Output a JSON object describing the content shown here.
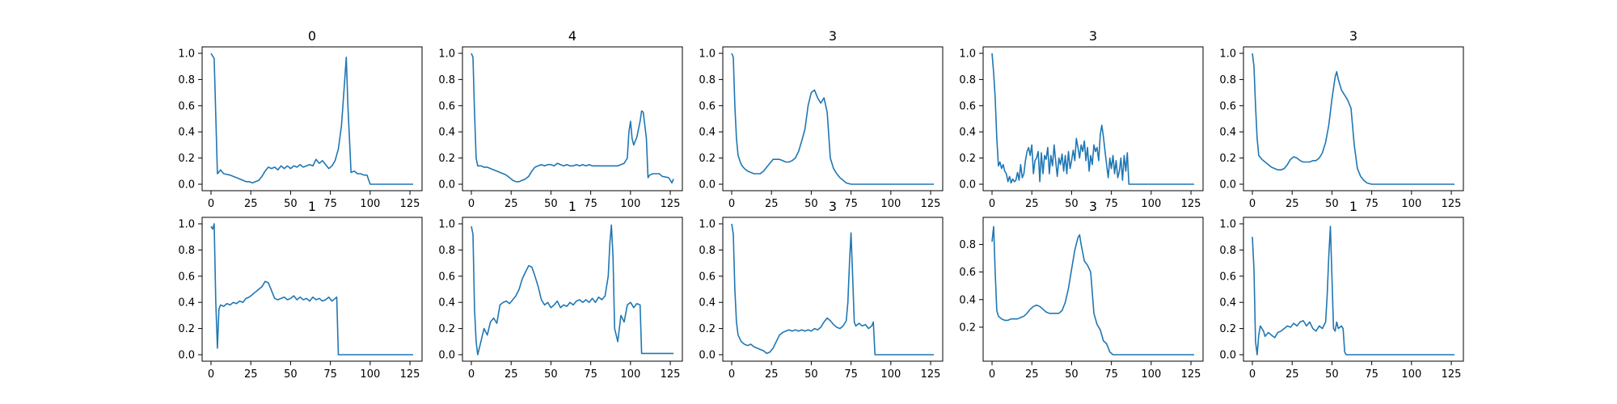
{
  "chart_data": [
    {
      "type": "line",
      "title": "0",
      "xlim": [
        0,
        127
      ],
      "ylim": [
        0,
        1.0
      ],
      "xticks": [
        0,
        25,
        50,
        75,
        100,
        125
      ],
      "yticks": [
        0.0,
        0.2,
        0.4,
        0.6,
        0.8,
        1.0
      ],
      "x": [
        0,
        2,
        4,
        6,
        8,
        12,
        16,
        20,
        22,
        24,
        26,
        28,
        30,
        32,
        34,
        36,
        38,
        40,
        42,
        44,
        46,
        48,
        50,
        52,
        54,
        56,
        58,
        60,
        62,
        64,
        66,
        68,
        70,
        72,
        74,
        76,
        78,
        80,
        82,
        84,
        85,
        86,
        88,
        90,
        92,
        94,
        96,
        98,
        100,
        104,
        110,
        120,
        127
      ],
      "y": [
        1.0,
        0.96,
        0.08,
        0.11,
        0.08,
        0.07,
        0.05,
        0.03,
        0.02,
        0.02,
        0.01,
        0.02,
        0.03,
        0.06,
        0.1,
        0.13,
        0.12,
        0.13,
        0.11,
        0.14,
        0.12,
        0.14,
        0.12,
        0.14,
        0.13,
        0.15,
        0.13,
        0.14,
        0.15,
        0.14,
        0.19,
        0.16,
        0.18,
        0.15,
        0.12,
        0.14,
        0.18,
        0.27,
        0.45,
        0.8,
        0.97,
        0.6,
        0.09,
        0.1,
        0.08,
        0.08,
        0.07,
        0.07,
        0.0,
        0.0,
        0.0,
        0.0,
        0.0
      ]
    },
    {
      "type": "line",
      "title": "4",
      "xlim": [
        0,
        127
      ],
      "ylim": [
        0,
        1.0
      ],
      "xticks": [
        0,
        25,
        50,
        75,
        100,
        125
      ],
      "yticks": [
        0.0,
        0.2,
        0.4,
        0.6,
        0.8,
        1.0
      ],
      "x": [
        0,
        1,
        2,
        3,
        4,
        6,
        8,
        10,
        12,
        14,
        16,
        18,
        20,
        22,
        24,
        26,
        28,
        30,
        32,
        34,
        36,
        38,
        40,
        42,
        44,
        46,
        48,
        50,
        52,
        54,
        56,
        58,
        60,
        62,
        64,
        66,
        68,
        70,
        72,
        74,
        76,
        78,
        80,
        84,
        88,
        92,
        96,
        98,
        99,
        100,
        101,
        102,
        104,
        106,
        107,
        108,
        110,
        111,
        112,
        114,
        116,
        118,
        120,
        124,
        126,
        127
      ],
      "y": [
        1.0,
        0.97,
        0.55,
        0.2,
        0.14,
        0.14,
        0.13,
        0.13,
        0.12,
        0.11,
        0.1,
        0.09,
        0.08,
        0.07,
        0.05,
        0.03,
        0.02,
        0.02,
        0.03,
        0.04,
        0.06,
        0.1,
        0.13,
        0.14,
        0.15,
        0.14,
        0.15,
        0.15,
        0.14,
        0.16,
        0.15,
        0.14,
        0.15,
        0.14,
        0.14,
        0.15,
        0.14,
        0.15,
        0.14,
        0.15,
        0.14,
        0.14,
        0.14,
        0.14,
        0.14,
        0.14,
        0.16,
        0.2,
        0.4,
        0.48,
        0.35,
        0.3,
        0.36,
        0.48,
        0.56,
        0.55,
        0.35,
        0.05,
        0.07,
        0.08,
        0.08,
        0.08,
        0.06,
        0.05,
        0.01,
        0.04
      ]
    },
    {
      "type": "line",
      "title": "3",
      "xlim": [
        0,
        127
      ],
      "ylim": [
        0,
        1.0
      ],
      "xticks": [
        0,
        25,
        50,
        75,
        100,
        125
      ],
      "yticks": [
        0.0,
        0.2,
        0.4,
        0.6,
        0.8,
        1.0
      ],
      "x": [
        0,
        1,
        2,
        3,
        4,
        6,
        8,
        10,
        12,
        14,
        16,
        18,
        20,
        22,
        24,
        26,
        28,
        30,
        32,
        34,
        36,
        38,
        40,
        42,
        44,
        46,
        48,
        50,
        52,
        54,
        56,
        58,
        60,
        62,
        64,
        66,
        68,
        70,
        72,
        75,
        80,
        90,
        100,
        110,
        120,
        127
      ],
      "y": [
        1.0,
        0.97,
        0.6,
        0.35,
        0.22,
        0.15,
        0.12,
        0.1,
        0.09,
        0.08,
        0.08,
        0.08,
        0.1,
        0.13,
        0.16,
        0.19,
        0.19,
        0.19,
        0.18,
        0.17,
        0.17,
        0.18,
        0.2,
        0.25,
        0.33,
        0.42,
        0.6,
        0.7,
        0.72,
        0.66,
        0.62,
        0.66,
        0.55,
        0.2,
        0.12,
        0.08,
        0.05,
        0.03,
        0.01,
        0.0,
        0.0,
        0.0,
        0.0,
        0.0,
        0.0,
        0.0
      ]
    },
    {
      "type": "line",
      "title": "3",
      "xlim": [
        0,
        127
      ],
      "ylim": [
        0,
        1.0
      ],
      "xticks": [
        0,
        25,
        50,
        75,
        100,
        125
      ],
      "yticks": [
        0.0,
        0.2,
        0.4,
        0.6,
        0.8,
        1.0
      ],
      "x": [
        0,
        1,
        2,
        3,
        4,
        5,
        6,
        7,
        8,
        9,
        10,
        11,
        12,
        13,
        14,
        15,
        16,
        17,
        18,
        19,
        20,
        21,
        22,
        23,
        24,
        25,
        26,
        27,
        28,
        29,
        30,
        31,
        32,
        33,
        34,
        35,
        36,
        37,
        38,
        39,
        40,
        41,
        42,
        43,
        44,
        45,
        46,
        47,
        48,
        49,
        50,
        51,
        52,
        53,
        54,
        55,
        56,
        57,
        58,
        59,
        60,
        61,
        62,
        63,
        64,
        65,
        66,
        67,
        68,
        69,
        70,
        71,
        72,
        73,
        74,
        75,
        76,
        77,
        78,
        79,
        80,
        81,
        82,
        83,
        84,
        85,
        86,
        90,
        100,
        110,
        120,
        127
      ],
      "y": [
        1.0,
        0.85,
        0.66,
        0.35,
        0.14,
        0.17,
        0.12,
        0.15,
        0.1,
        0.08,
        0.02,
        0.06,
        0.01,
        0.04,
        0.02,
        0.03,
        0.09,
        0.03,
        0.15,
        0.05,
        0.08,
        0.18,
        0.25,
        0.28,
        0.22,
        0.3,
        0.08,
        0.18,
        0.2,
        0.25,
        0.02,
        0.24,
        0.08,
        0.22,
        0.19,
        0.28,
        0.08,
        0.22,
        0.14,
        0.3,
        0.18,
        0.06,
        0.2,
        0.15,
        0.23,
        0.1,
        0.22,
        0.08,
        0.25,
        0.12,
        0.18,
        0.26,
        0.18,
        0.35,
        0.28,
        0.2,
        0.3,
        0.25,
        0.33,
        0.18,
        0.28,
        0.1,
        0.22,
        0.15,
        0.3,
        0.25,
        0.28,
        0.18,
        0.38,
        0.45,
        0.36,
        0.25,
        0.15,
        0.05,
        0.2,
        0.12,
        0.22,
        0.08,
        0.18,
        0.05,
        0.1,
        0.2,
        0.03,
        0.22,
        0.1,
        0.24,
        0.0,
        0.0,
        0.0,
        0.0,
        0.0,
        0.0
      ]
    },
    {
      "type": "line",
      "title": "3",
      "xlim": [
        0,
        127
      ],
      "ylim": [
        0,
        1.0
      ],
      "xticks": [
        0,
        25,
        50,
        75,
        100,
        125
      ],
      "yticks": [
        0.0,
        0.2,
        0.4,
        0.6,
        0.8,
        1.0
      ],
      "x": [
        0,
        1,
        2,
        3,
        4,
        6,
        8,
        10,
        12,
        14,
        16,
        18,
        20,
        22,
        24,
        26,
        28,
        30,
        32,
        34,
        36,
        38,
        40,
        42,
        44,
        46,
        48,
        50,
        52,
        53,
        54,
        56,
        58,
        60,
        62,
        64,
        66,
        68,
        70,
        72,
        75,
        80,
        90,
        100,
        110,
        120,
        127
      ],
      "y": [
        1.0,
        0.9,
        0.6,
        0.35,
        0.22,
        0.19,
        0.17,
        0.15,
        0.13,
        0.12,
        0.11,
        0.11,
        0.12,
        0.15,
        0.19,
        0.21,
        0.2,
        0.18,
        0.17,
        0.17,
        0.17,
        0.18,
        0.18,
        0.2,
        0.24,
        0.32,
        0.45,
        0.65,
        0.82,
        0.86,
        0.8,
        0.72,
        0.68,
        0.64,
        0.58,
        0.3,
        0.12,
        0.06,
        0.03,
        0.01,
        0.0,
        0.0,
        0.0,
        0.0,
        0.0,
        0.0,
        0.0
      ]
    },
    {
      "type": "line",
      "title": "1",
      "xlim": [
        0,
        127
      ],
      "ylim": [
        0,
        1.0
      ],
      "xticks": [
        0,
        25,
        50,
        75,
        100,
        125
      ],
      "yticks": [
        0.0,
        0.2,
        0.4,
        0.6,
        0.8,
        1.0
      ],
      "x": [
        0,
        1,
        2,
        3,
        4,
        5,
        6,
        8,
        10,
        12,
        14,
        16,
        18,
        20,
        22,
        24,
        26,
        28,
        30,
        32,
        34,
        36,
        38,
        40,
        42,
        44,
        46,
        48,
        50,
        52,
        54,
        56,
        58,
        60,
        62,
        64,
        66,
        68,
        70,
        72,
        74,
        76,
        78,
        79,
        80,
        82,
        90,
        100,
        110,
        120,
        127
      ],
      "y": [
        0.98,
        0.96,
        1.0,
        0.4,
        0.05,
        0.35,
        0.38,
        0.37,
        0.39,
        0.38,
        0.4,
        0.39,
        0.41,
        0.4,
        0.43,
        0.44,
        0.46,
        0.48,
        0.5,
        0.52,
        0.56,
        0.55,
        0.49,
        0.43,
        0.42,
        0.43,
        0.44,
        0.42,
        0.43,
        0.45,
        0.42,
        0.44,
        0.42,
        0.43,
        0.41,
        0.44,
        0.42,
        0.43,
        0.41,
        0.42,
        0.44,
        0.41,
        0.43,
        0.44,
        0.0,
        0.0,
        0.0,
        0.0,
        0.0,
        0.0,
        0.0
      ]
    },
    {
      "type": "line",
      "title": "1",
      "xlim": [
        0,
        127
      ],
      "ylim": [
        0,
        1.0
      ],
      "xticks": [
        0,
        25,
        50,
        75,
        100,
        125
      ],
      "yticks": [
        0.0,
        0.2,
        0.4,
        0.6,
        0.8,
        1.0
      ],
      "x": [
        0,
        1,
        2,
        3,
        4,
        6,
        8,
        10,
        12,
        14,
        16,
        18,
        20,
        22,
        24,
        26,
        28,
        30,
        32,
        34,
        36,
        38,
        40,
        42,
        44,
        46,
        48,
        50,
        52,
        54,
        56,
        58,
        60,
        62,
        64,
        66,
        68,
        70,
        72,
        74,
        76,
        78,
        80,
        82,
        84,
        86,
        87,
        88,
        89,
        90,
        92,
        94,
        96,
        98,
        100,
        102,
        104,
        106,
        107,
        110,
        120,
        127
      ],
      "y": [
        0.98,
        0.92,
        0.35,
        0.1,
        0.0,
        0.1,
        0.2,
        0.15,
        0.25,
        0.28,
        0.24,
        0.38,
        0.4,
        0.41,
        0.39,
        0.42,
        0.45,
        0.5,
        0.58,
        0.63,
        0.68,
        0.67,
        0.6,
        0.52,
        0.42,
        0.38,
        0.4,
        0.36,
        0.38,
        0.41,
        0.36,
        0.38,
        0.37,
        0.4,
        0.38,
        0.41,
        0.42,
        0.4,
        0.42,
        0.4,
        0.43,
        0.4,
        0.44,
        0.42,
        0.45,
        0.6,
        0.85,
        0.99,
        0.75,
        0.2,
        0.1,
        0.3,
        0.25,
        0.38,
        0.4,
        0.36,
        0.39,
        0.38,
        0.01,
        0.01,
        0.01,
        0.01
      ]
    },
    {
      "type": "line",
      "title": "3",
      "xlim": [
        0,
        127
      ],
      "ylim": [
        0,
        1.0
      ],
      "xticks": [
        0,
        25,
        50,
        75,
        100,
        125
      ],
      "yticks": [
        0.0,
        0.2,
        0.4,
        0.6,
        0.8,
        1.0
      ],
      "x": [
        0,
        1,
        2,
        3,
        4,
        6,
        8,
        10,
        12,
        14,
        16,
        18,
        20,
        22,
        24,
        26,
        28,
        30,
        32,
        34,
        36,
        38,
        40,
        42,
        44,
        46,
        48,
        50,
        52,
        54,
        56,
        58,
        60,
        62,
        64,
        66,
        68,
        70,
        72,
        73,
        74,
        75,
        76,
        77,
        78,
        80,
        82,
        84,
        86,
        88,
        89,
        90,
        95,
        100,
        110,
        120,
        127
      ],
      "y": [
        1.0,
        0.92,
        0.5,
        0.25,
        0.15,
        0.1,
        0.08,
        0.07,
        0.08,
        0.06,
        0.05,
        0.04,
        0.03,
        0.01,
        0.02,
        0.05,
        0.1,
        0.15,
        0.17,
        0.18,
        0.19,
        0.18,
        0.19,
        0.18,
        0.19,
        0.18,
        0.19,
        0.18,
        0.2,
        0.19,
        0.21,
        0.25,
        0.28,
        0.26,
        0.23,
        0.21,
        0.2,
        0.22,
        0.26,
        0.4,
        0.7,
        0.93,
        0.6,
        0.25,
        0.22,
        0.24,
        0.22,
        0.23,
        0.2,
        0.22,
        0.25,
        0.0,
        0.0,
        0.0,
        0.0,
        0.0,
        0.0
      ]
    },
    {
      "type": "line",
      "title": "3",
      "xlim": [
        0,
        127
      ],
      "ylim": [
        0,
        0.95
      ],
      "xticks": [
        0,
        25,
        50,
        75,
        100,
        125
      ],
      "yticks": [
        0.2,
        0.4,
        0.6,
        0.8
      ],
      "x": [
        0,
        1,
        2,
        3,
        4,
        6,
        8,
        10,
        12,
        14,
        16,
        18,
        20,
        22,
        24,
        26,
        28,
        30,
        32,
        34,
        36,
        38,
        40,
        42,
        44,
        46,
        48,
        50,
        52,
        54,
        55,
        56,
        58,
        60,
        62,
        64,
        66,
        68,
        70,
        72,
        74,
        76,
        80,
        90,
        100,
        110,
        120,
        127
      ],
      "y": [
        0.82,
        0.93,
        0.6,
        0.32,
        0.28,
        0.26,
        0.25,
        0.25,
        0.26,
        0.26,
        0.26,
        0.27,
        0.28,
        0.3,
        0.33,
        0.35,
        0.36,
        0.35,
        0.33,
        0.31,
        0.3,
        0.3,
        0.3,
        0.3,
        0.32,
        0.38,
        0.48,
        0.62,
        0.76,
        0.85,
        0.87,
        0.8,
        0.68,
        0.65,
        0.6,
        0.3,
        0.22,
        0.18,
        0.1,
        0.08,
        0.02,
        0.0,
        0.0,
        0.0,
        0.0,
        0.0,
        0.0,
        0.0
      ]
    },
    {
      "type": "line",
      "title": "1",
      "xlim": [
        0,
        127
      ],
      "ylim": [
        0,
        1.0
      ],
      "xticks": [
        0,
        25,
        50,
        75,
        100,
        125
      ],
      "yticks": [
        0.0,
        0.2,
        0.4,
        0.6,
        0.8,
        1.0
      ],
      "x": [
        0,
        1,
        2,
        3,
        4,
        5,
        6,
        7,
        8,
        10,
        12,
        14,
        16,
        18,
        20,
        22,
        24,
        26,
        28,
        30,
        32,
        34,
        36,
        38,
        40,
        42,
        44,
        46,
        47,
        48,
        49,
        50,
        51,
        52,
        53,
        54,
        56,
        57,
        58,
        59,
        60,
        62,
        70,
        80,
        90,
        100,
        110,
        120,
        127
      ],
      "y": [
        0.9,
        0.65,
        0.1,
        0.0,
        0.15,
        0.22,
        0.2,
        0.18,
        0.14,
        0.17,
        0.15,
        0.13,
        0.17,
        0.18,
        0.2,
        0.22,
        0.21,
        0.24,
        0.22,
        0.25,
        0.26,
        0.22,
        0.25,
        0.2,
        0.18,
        0.22,
        0.2,
        0.25,
        0.45,
        0.75,
        0.98,
        0.6,
        0.2,
        0.18,
        0.25,
        0.2,
        0.22,
        0.2,
        0.02,
        0.0,
        0.0,
        0.0,
        0.0,
        0.0,
        0.0,
        0.0,
        0.0,
        0.0,
        0.0
      ]
    }
  ]
}
